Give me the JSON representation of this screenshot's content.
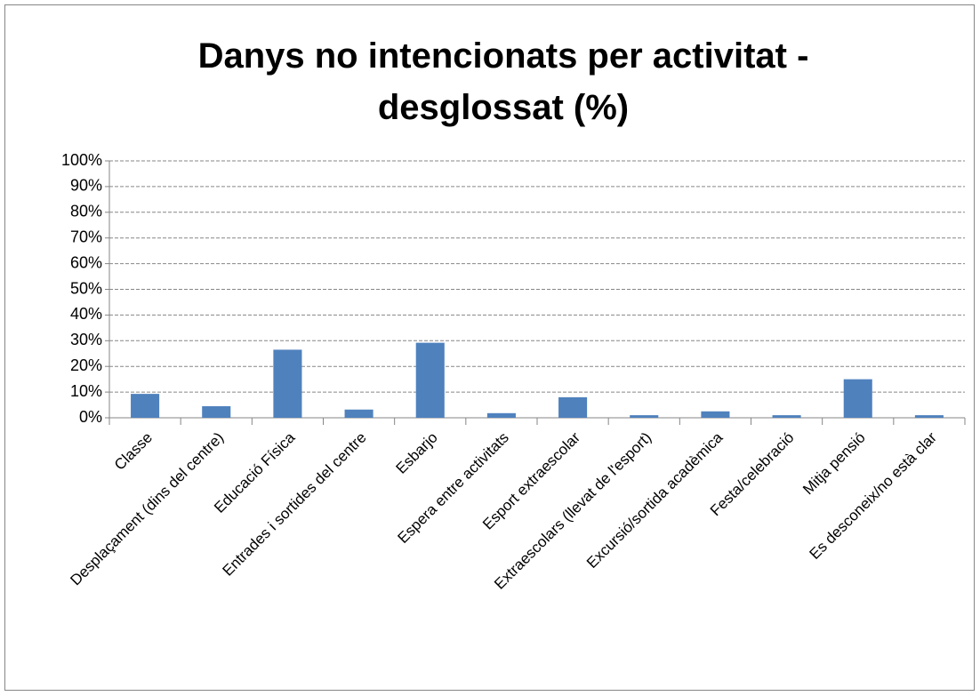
{
  "chart_data": {
    "type": "bar",
    "title": "Danys no intencionats per activitat - desglossat (%)",
    "categories": [
      "Classe",
      "Desplaçament (dins del centre)",
      "Educació Física",
      "Entrades i sortides del centre",
      "Esbarjo",
      "Espera entre activitats",
      "Esport extraescolar",
      "Extraescolars (llevat de l'esport)",
      "Excursió/sortida acadèmica",
      "Festa/celebració",
      "Mitja pensió",
      "Es desconeix/no està clar"
    ],
    "values": [
      9.3,
      4.5,
      26.5,
      3.2,
      29.2,
      1.8,
      8,
      1,
      2.5,
      1,
      15,
      1
    ],
    "color": "#4f81bd",
    "ylim": [
      0,
      100
    ],
    "yticks": [
      {
        "value": 0,
        "label": "0%"
      },
      {
        "value": 10,
        "label": "10%"
      },
      {
        "value": 20,
        "label": "20%"
      },
      {
        "value": 30,
        "label": "30%"
      },
      {
        "value": 40,
        "label": "40%"
      },
      {
        "value": 50,
        "label": "50%"
      },
      {
        "value": 60,
        "label": "60%"
      },
      {
        "value": 70,
        "label": "70%"
      },
      {
        "value": 80,
        "label": "80%"
      },
      {
        "value": 90,
        "label": "90%"
      },
      {
        "value": 100,
        "label": "100%"
      }
    ],
    "grid": true
  }
}
